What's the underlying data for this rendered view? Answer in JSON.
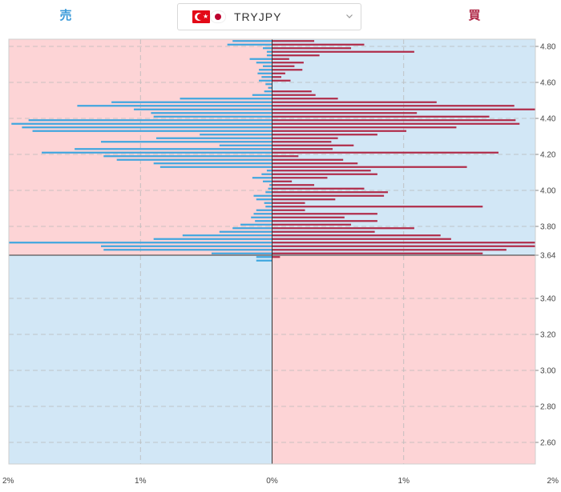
{
  "header": {
    "sell_label": "売",
    "buy_label": "買",
    "pair": "TRYJPY"
  },
  "colors": {
    "sell_bar": "#3ea6df",
    "buy_bar": "#b02a48",
    "pink_bg": "#fdd4d6",
    "blue_bg": "#d2e7f6"
  },
  "icons": {
    "left_flag": "turkey-flag-icon",
    "right_flag": "japan-flag-icon",
    "dropdown": "chevron-down-icon"
  },
  "chart_data": {
    "type": "bar",
    "orientation": "horizontal",
    "current_price": 3.64,
    "ylim": [
      2.48,
      4.84
    ],
    "xlim": [
      -2,
      2
    ],
    "yticks": [
      {
        "value": 4.8,
        "label": "4.80"
      },
      {
        "value": 4.6,
        "label": "4.60"
      },
      {
        "value": 4.4,
        "label": "4.40"
      },
      {
        "value": 4.2,
        "label": "4.20"
      },
      {
        "value": 4.0,
        "label": "4.00"
      },
      {
        "value": 3.8,
        "label": "3.80"
      },
      {
        "value": 3.64,
        "label": "3.64"
      },
      {
        "value": 3.4,
        "label": "3.40"
      },
      {
        "value": 3.2,
        "label": "3.20"
      },
      {
        "value": 3.0,
        "label": "3.00"
      },
      {
        "value": 2.8,
        "label": "2.80"
      },
      {
        "value": 2.6,
        "label": "2.60"
      }
    ],
    "xticks": [
      {
        "value": -2,
        "label": "2%"
      },
      {
        "value": -1,
        "label": "1%"
      },
      {
        "value": 0,
        "label": "0%"
      },
      {
        "value": 1,
        "label": "1%"
      },
      {
        "value": 2,
        "label": "2%"
      }
    ],
    "price": [
      4.83,
      4.81,
      4.79,
      4.77,
      4.75,
      4.73,
      4.71,
      4.69,
      4.67,
      4.65,
      4.63,
      4.61,
      4.59,
      4.57,
      4.55,
      4.53,
      4.51,
      4.49,
      4.47,
      4.45,
      4.43,
      4.41,
      4.39,
      4.37,
      4.35,
      4.33,
      4.31,
      4.29,
      4.27,
      4.25,
      4.23,
      4.21,
      4.19,
      4.17,
      4.15,
      4.13,
      4.11,
      4.09,
      4.07,
      4.05,
      4.03,
      4.01,
      3.99,
      3.97,
      3.95,
      3.93,
      3.91,
      3.89,
      3.87,
      3.85,
      3.83,
      3.81,
      3.79,
      3.77,
      3.75,
      3.73,
      3.71,
      3.69,
      3.67,
      3.65,
      3.63,
      3.61
    ],
    "sell_pct": [
      0.3,
      0.34,
      0.07,
      0.04,
      0.04,
      0.17,
      0.12,
      0.07,
      0.1,
      0.11,
      0.08,
      0.1,
      0.05,
      0.03,
      0.06,
      0.15,
      0.7,
      1.22,
      1.48,
      1.05,
      0.92,
      0.9,
      1.85,
      1.98,
      1.9,
      1.82,
      0.55,
      0.88,
      1.3,
      0.4,
      1.5,
      1.75,
      1.28,
      1.18,
      0.9,
      0.85,
      0.04,
      0.08,
      0.15,
      0.07,
      0.02,
      0.03,
      0.05,
      0.14,
      0.12,
      0.06,
      0.05,
      0.12,
      0.14,
      0.16,
      0.13,
      0.24,
      0.3,
      0.4,
      0.68,
      0.9,
      2.0,
      1.3,
      1.28,
      0.46,
      0.12,
      0.12
    ],
    "buy_pct": [
      0.32,
      0.7,
      0.6,
      1.08,
      0.36,
      0.13,
      0.24,
      0.17,
      0.23,
      0.1,
      0.07,
      0.14,
      0.0,
      0.0,
      0.3,
      0.33,
      0.5,
      1.25,
      1.84,
      2.0,
      1.1,
      1.65,
      1.85,
      1.88,
      1.4,
      1.02,
      0.8,
      0.5,
      0.45,
      0.62,
      0.46,
      1.72,
      0.2,
      0.54,
      0.65,
      1.48,
      0.75,
      0.8,
      0.42,
      0.15,
      0.32,
      0.7,
      0.88,
      0.85,
      0.48,
      0.25,
      1.6,
      0.25,
      0.8,
      0.55,
      0.8,
      0.6,
      1.08,
      0.78,
      1.28,
      1.36,
      2.0,
      2.0,
      1.78,
      1.6,
      0.06,
      0.0
    ]
  }
}
